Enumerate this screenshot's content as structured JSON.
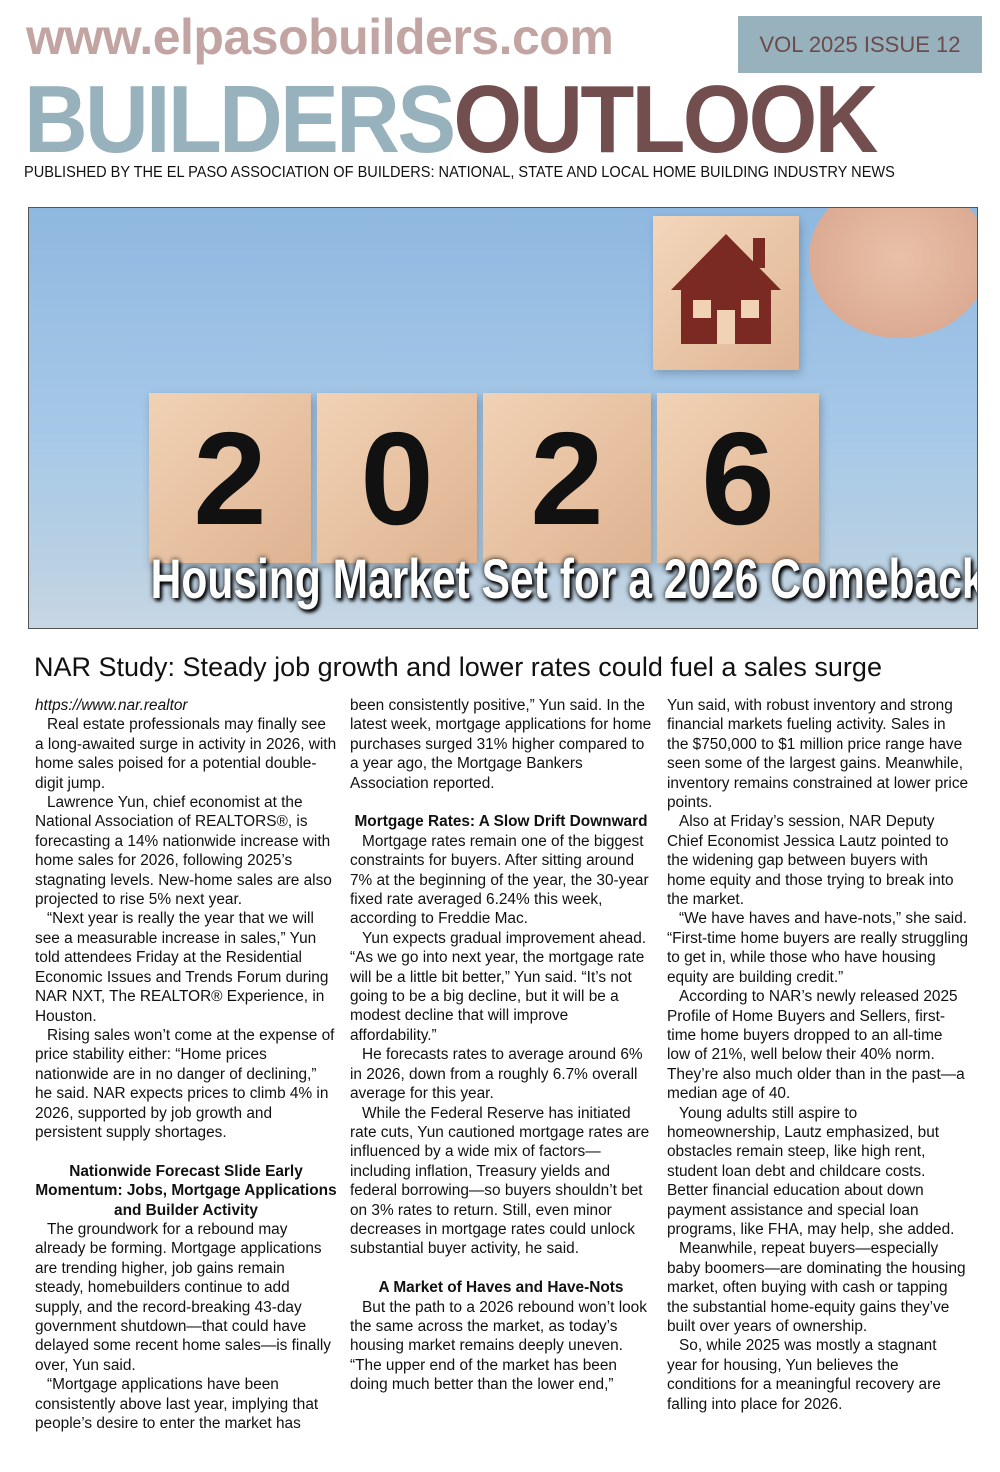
{
  "header": {
    "website": "www.elpasobuilders.com",
    "issue": "VOL 2025 ISSUE 12",
    "masthead_part1": "BUILDERS",
    "masthead_part2": "OUTLOOK",
    "publisher_line": "PUBLISHED BY THE EL PASO ASSOCIATION OF BUILDERS: NATIONAL, STATE AND LOCAL HOME BUILDING INDUSTRY NEWS",
    "colors": {
      "light_blue": "#97b1bd",
      "mauve": "#c2a5a3",
      "brown": "#724e4f"
    }
  },
  "hero": {
    "digits": [
      "2",
      "0",
      "2",
      "6"
    ],
    "title": "Housing Market Set for a 2026 Comeback"
  },
  "article": {
    "headline": "NAR Study: Steady job growth and lower rates could fuel a sales surge",
    "source": "https://www.nar.realtor",
    "col1": [
      "Real estate professionals may finally see a long-awaited surge in activity in 2026, with home sales poised for a potential double-digit jump.",
      "Lawrence Yun, chief economist at the National Association of REALTORS®, is forecasting a 14% nationwide increase with home sales for 2026, following 2025’s stagnating levels. New-home sales are also projected to rise 5% next year.",
      "“Next year is really the year that we will see a measurable increase in sales,” Yun told attendees Friday at the Residential Economic Issues and Trends Forum during NAR NXT, The REALTOR® Experience, in Houston.",
      "Rising sales won’t come at the expense of price stability either: “Home prices nationwide are in no danger of declining,” he said. NAR expects prices to climb 4% in 2026, supported by job growth and persistent supply shortages."
    ],
    "col1_heading": "Nationwide Forecast Slide Early Momentum: Jobs, Mortgage Applications and Builder Activity",
    "col1b": [
      "The groundwork for a rebound may already be forming. Mortgage applications are trending higher, job gains remain steady, homebuilders continue to add supply, and the record-breaking 43-day government shutdown—that could have delayed some recent home sales—is finally over, Yun said.",
      "“Mortgage applications have been consistently above last year, implying that people’s desire to enter the market has"
    ],
    "col2_cont": "been consistently positive,” Yun said. In the latest week, mortgage applications for home purchases surged 31% higher compared to a year ago, the Mortgage Bankers Association reported.",
    "col2_heading": "Mortgage Rates: A Slow Drift Downward",
    "col2": [
      "Mortgage rates remain one of the biggest constraints for buyers. After sitting around 7% at the beginning of the year, the 30-year fixed rate averaged 6.24% this week, according to Freddie Mac.",
      "Yun expects gradual improvement ahead. “As we go into next year, the mortgage rate will be a little bit better,” Yun said. “It’s not going to be a big decline, but it will be a modest decline that will improve affordability.”",
      "He forecasts rates to average around 6% in 2026, down from a roughly 6.7% overall average for this year.",
      "While the Federal Reserve has initiated rate cuts, Yun cautioned mortgage rates are influenced by a wide mix of factors—including inflation, Treasury yields and federal borrowing—so buyers shouldn’t bet on 3% rates to return. Still, even minor decreases in mortgage rates could unlock substantial buyer activity, he said."
    ],
    "col2_heading2": "A Market of Haves and Have-Nots",
    "col2b": [
      "But the path to a 2026 rebound won’t look the same across the market, as today’s housing market remains deeply uneven.",
      "“The upper end of the market has been doing much better than the lower end,”"
    ],
    "col3_cont": "Yun said, with robust inventory and strong financial markets fueling activity. Sales in the $750,000 to $1 million price range have seen some of the largest gains. Meanwhile, inventory remains constrained at lower price points.",
    "col3": [
      "Also at Friday’s session, NAR Deputy Chief Economist Jessica Lautz pointed to the widening gap between buyers with home equity and those trying to break into the market.",
      "“We have haves and have-nots,” she said. “First-time home buyers are really struggling to get in, while those who have housing equity are building credit.”",
      "According to NAR’s newly released 2025 Profile of Home Buyers and Sellers, first-time home buyers dropped to an all-time low of 21%, well below their 40% norm. They’re also much older than in the past—a median age of 40.",
      "Young adults still aspire to homeownership, Lautz emphasized, but obstacles remain steep, like high rent, student loan debt and childcare costs. Better financial education about down payment assistance and special loan programs, like FHA, may help, she added.",
      "Meanwhile, repeat buyers—especially baby boomers—are dominating the housing market, often buying with cash or tapping the substantial home-equity gains they’ve built over years of ownership.",
      "So, while 2025 was mostly a stagnant year for housing, Yun believes the conditions for a meaningful recovery are falling into place for 2026."
    ]
  }
}
